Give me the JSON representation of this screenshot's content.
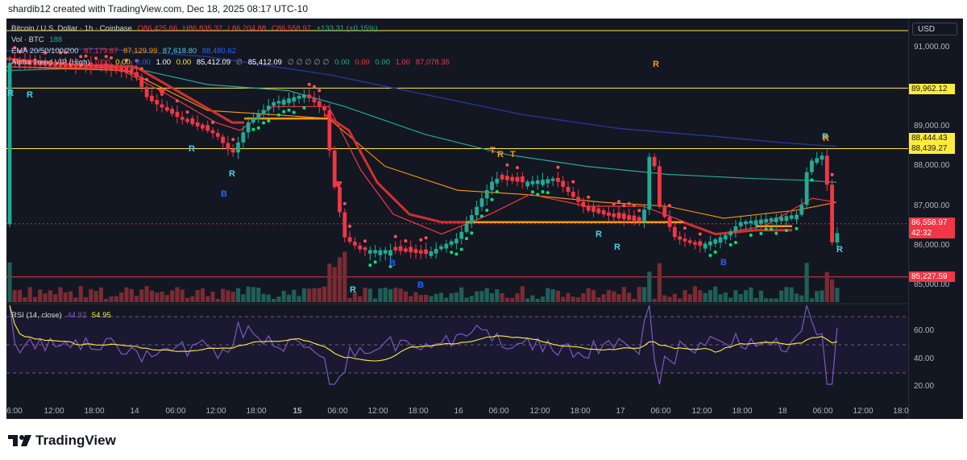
{
  "header": {
    "credit": "shardib12 created with TradingView.com, Dec 18, 2025 08:17 UTC-10"
  },
  "legend": {
    "symbol": "Bitcoin / U.S. Dollar · 1h · Coinbase",
    "o": "O86,425.66",
    "h": "H86,835.32",
    "l": "L86,204.88",
    "c": "C86,558.97",
    "chg": "+133.31 (+0.15%)",
    "vol_label": "Vol · BTC",
    "vol_value": "188",
    "ema_label": "EMA 20/50/100/200",
    "ema_values": [
      "87,179.67",
      "87,129.99",
      "87,618.80",
      "88,480.62"
    ],
    "alpha_label": "Alpha Trend VIP (High)",
    "alpha_values": [
      "0.00",
      "0.00",
      "0.00",
      "1.00",
      "0.00",
      "85,412.09",
      "∅",
      "85,412.09",
      "∅ ∅ ∅ ∅ ∅",
      "0.00",
      "0.00",
      "0.00",
      "1.00",
      "87,078.35"
    ],
    "rsi_label": "RSI (14, close)",
    "rsi_value": "44.92",
    "rsi_ma": "54.95"
  },
  "currency": "USD",
  "y_axis": [
    "91,000.00",
    "89,000.00",
    "88,000.00",
    "87,000.00",
    "86,000.00",
    "85,000.00"
  ],
  "rsi_axis": [
    "60.00",
    "40.00",
    "20.00"
  ],
  "price_tags": {
    "t1": "89,962.12",
    "t2": "88,444.43",
    "t3": "88,439.27",
    "last": "86,558.97",
    "countdown": "42:32",
    "t4": "85,227.59"
  },
  "x_axis": [
    "6:00",
    "12:00",
    "18:00",
    "14",
    "06:00",
    "12:00",
    "18:00",
    "15",
    "06:00",
    "12:00",
    "18:00",
    "16",
    "06:00",
    "12:00",
    "18:00",
    "17",
    "06:00",
    "12:00",
    "18:00",
    "18",
    "06:00",
    "12:00",
    "18:0"
  ],
  "signals": {
    "R": "R",
    "B": "B",
    "T": "T"
  },
  "footer": {
    "brand": "TradingView"
  },
  "colors": {
    "up": "#22ab94",
    "down": "#f23645",
    "bg": "#131722",
    "yellow": "#ffeb3b",
    "ema_blue": "#1e3a8a",
    "ema_teal": "#26a69a",
    "ema_orange": "#ff9800",
    "rsi": "#7e57c2"
  },
  "chart_data": {
    "type": "candlestick",
    "price_levels": [
      89962.12,
      88444.43,
      85227.59
    ],
    "last_price": 86558.97,
    "rsi_levels": [
      70,
      50,
      30
    ]
  }
}
